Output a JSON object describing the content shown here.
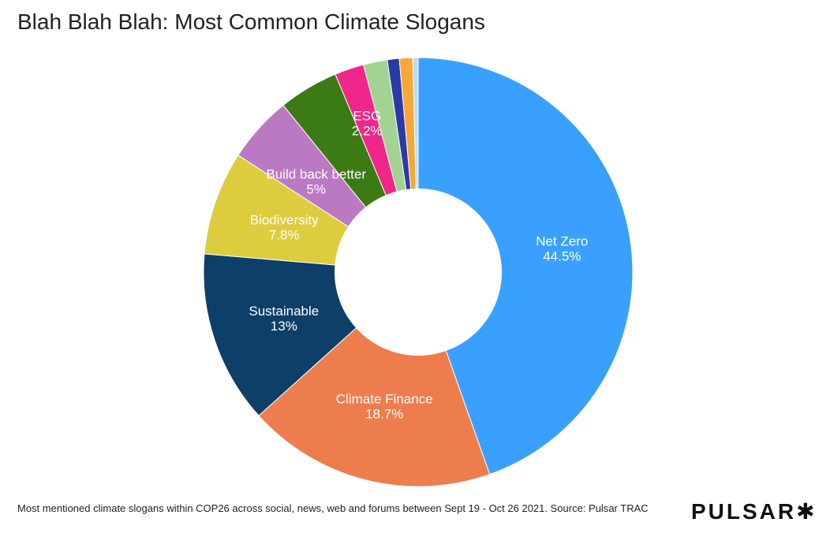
{
  "title": "Blah Blah Blah: Most Common Climate Slogans",
  "footnote": "Most mentioned climate slogans within COP26 across social, news, web and forums between Sept 19 - Oct 26 2021. Source: Pulsar TRAC",
  "brand": "PULSAR✱",
  "chart_data": {
    "type": "pie",
    "donut": true,
    "title": "Blah Blah Blah: Most Common Climate Slogans",
    "slices": [
      {
        "label": "Net Zero",
        "value": 44.5,
        "value_label": "44.5%",
        "color": "#3aa0ff"
      },
      {
        "label": "Climate Finance",
        "value": 18.7,
        "value_label": "18.7%",
        "color": "#ee7d4d"
      },
      {
        "label": "Sustainable",
        "value": 13,
        "value_label": "13%",
        "color": "#0d3f69"
      },
      {
        "label": "Biodiversity",
        "value": 7.8,
        "value_label": "7.8%",
        "color": "#ddcc3e"
      },
      {
        "label": "Build back better",
        "value": 5,
        "value_label": "5%",
        "color": "#bc79c3"
      },
      {
        "label": "",
        "value": 4.5,
        "value_label": "",
        "color": "#3c7a13"
      },
      {
        "label": "ESG",
        "value": 2.2,
        "value_label": "2.2%",
        "color": "#f0278a"
      },
      {
        "label": "",
        "value": 1.8,
        "value_label": "",
        "color": "#a3d393"
      },
      {
        "label": "",
        "value": 0.9,
        "value_label": "",
        "color": "#2c3aa5"
      },
      {
        "label": "",
        "value": 1.0,
        "value_label": "",
        "color": "#f7a737"
      },
      {
        "label": "",
        "value": 0.4,
        "value_label": "",
        "color": "#b9dcfa"
      }
    ]
  }
}
